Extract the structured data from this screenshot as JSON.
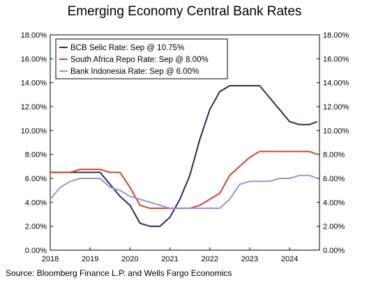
{
  "chart_data": {
    "type": "line",
    "title": "Emerging Economy Central Bank Rates",
    "xlabel": "",
    "ylabel": "",
    "x_ticks": [
      "2018",
      "2019",
      "2020",
      "2021",
      "2022",
      "2023",
      "2024"
    ],
    "xlim": [
      2018.0,
      2024.75
    ],
    "y_ticks": [
      "0.00%",
      "2.00%",
      "4.00%",
      "6.00%",
      "8.00%",
      "10.00%",
      "12.00%",
      "14.00%",
      "16.00%",
      "18.00%"
    ],
    "ylim": [
      0,
      18
    ],
    "grid": false,
    "legend_position": "top-left",
    "series": [
      {
        "name": "BCB Selic Rate: Sep @ 10.75%",
        "color": "#2d2a5a",
        "x": [
          2018.0,
          2018.5,
          2019.0,
          2019.25,
          2019.5,
          2019.75,
          2020.0,
          2020.25,
          2020.5,
          2020.75,
          2021.0,
          2021.25,
          2021.5,
          2021.75,
          2022.0,
          2022.25,
          2022.5,
          2022.75,
          2023.0,
          2023.25,
          2023.5,
          2023.75,
          2024.0,
          2024.25,
          2024.5,
          2024.7
        ],
        "y": [
          6.5,
          6.5,
          6.5,
          6.5,
          5.5,
          4.5,
          3.75,
          2.25,
          2.0,
          2.0,
          2.75,
          4.25,
          6.25,
          9.25,
          11.75,
          13.25,
          13.75,
          13.75,
          13.75,
          13.75,
          12.75,
          11.75,
          10.75,
          10.5,
          10.5,
          10.75
        ]
      },
      {
        "name": "South Africa Repo Rate: Sep @ 8.00%",
        "color": "#d0442a",
        "x": [
          2018.0,
          2018.5,
          2018.75,
          2019.0,
          2019.25,
          2019.5,
          2019.75,
          2020.0,
          2020.25,
          2020.5,
          2020.75,
          2021.0,
          2021.25,
          2021.5,
          2021.75,
          2022.0,
          2022.25,
          2022.5,
          2022.75,
          2023.0,
          2023.25,
          2023.5,
          2023.75,
          2024.0,
          2024.25,
          2024.5,
          2024.7
        ],
        "y": [
          6.5,
          6.5,
          6.75,
          6.75,
          6.75,
          6.5,
          6.5,
          5.25,
          3.75,
          3.5,
          3.5,
          3.5,
          3.5,
          3.5,
          3.75,
          4.25,
          4.75,
          6.25,
          7.0,
          7.75,
          8.25,
          8.25,
          8.25,
          8.25,
          8.25,
          8.25,
          8.0
        ]
      },
      {
        "name": "Bank Indonesia Rate: Sep @ 6.00%",
        "color": "#9b90de",
        "x": [
          2018.0,
          2018.25,
          2018.5,
          2018.75,
          2019.0,
          2019.25,
          2019.5,
          2019.75,
          2020.0,
          2020.25,
          2020.5,
          2020.75,
          2021.0,
          2021.25,
          2021.5,
          2021.75,
          2022.0,
          2022.25,
          2022.5,
          2022.75,
          2023.0,
          2023.25,
          2023.5,
          2023.75,
          2024.0,
          2024.25,
          2024.5,
          2024.7
        ],
        "y": [
          4.25,
          5.25,
          5.75,
          6.0,
          6.0,
          6.0,
          5.25,
          5.0,
          4.5,
          4.25,
          4.0,
          3.75,
          3.5,
          3.5,
          3.5,
          3.5,
          3.5,
          3.5,
          4.25,
          5.5,
          5.75,
          5.75,
          5.75,
          6.0,
          6.0,
          6.25,
          6.25,
          6.0
        ]
      }
    ]
  },
  "footer": {
    "source": "Source: Bloomberg Finance L.P. and Wells Fargo Economics"
  }
}
